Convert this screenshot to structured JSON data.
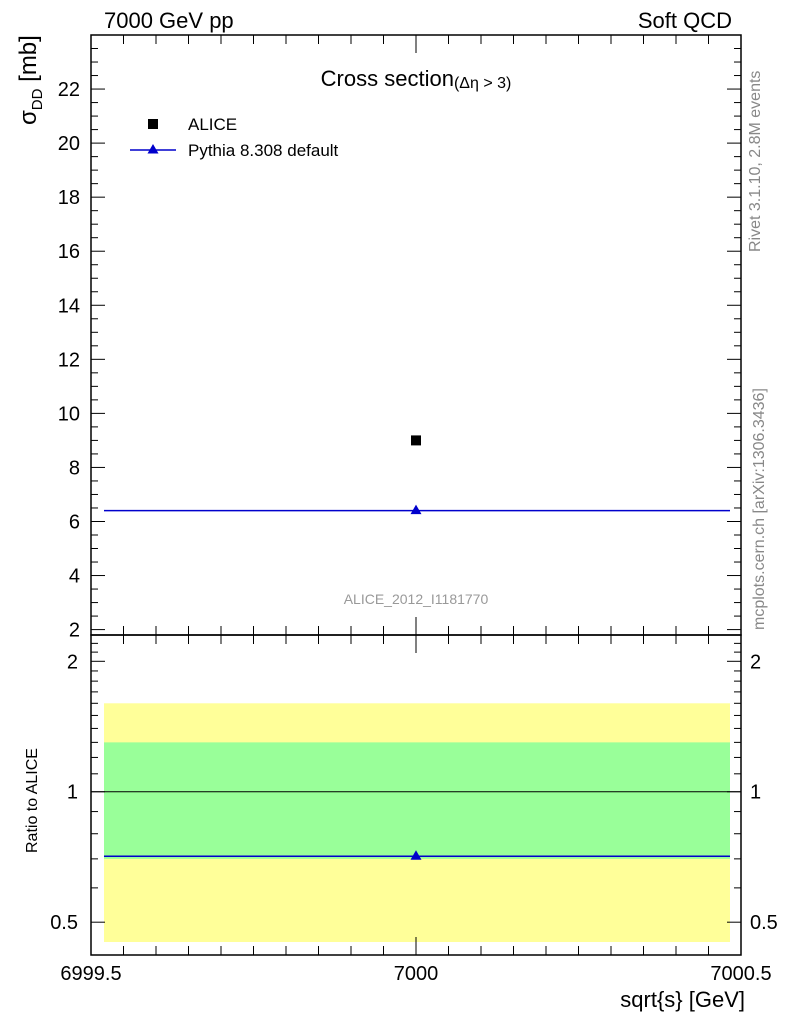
{
  "header": {
    "left": "7000 GeV pp",
    "right": "Soft QCD"
  },
  "side": {
    "rivet": "Rivet 3.1.10,  2.8M events",
    "mcplots": "mcplots.cern.ch [arXiv:1306.3436]"
  },
  "colors": {
    "alice": "#000000",
    "pythia": "#0000cc",
    "band_inner": "#99ff99",
    "band_outer": "#ffff99",
    "watermark": "#999999"
  },
  "chart_data": [
    {
      "type": "scatter",
      "title": "Cross section",
      "title_sub": "(Δη > 3)",
      "ylabel_main": "σ",
      "ylabel_sub": "DD",
      "ylabel_unit": " [mb]",
      "xlabel": "sqrt{s} [GeV]",
      "xlim": [
        6999.5,
        7000.5
      ],
      "ylim": [
        1.8,
        24.0
      ],
      "y_ticks": [
        "2",
        "4",
        "6",
        "8",
        "10",
        "12",
        "14",
        "16",
        "18",
        "20",
        "22"
      ],
      "watermark": "ALICE_2012_I1181770",
      "legend_position": "top-left",
      "series": [
        {
          "name": "ALICE",
          "x": [
            7000
          ],
          "y": [
            9.0
          ],
          "marker": "square"
        },
        {
          "name": "Pythia 8.308 default",
          "x": [
            7000
          ],
          "y": [
            6.4
          ],
          "marker": "triangle",
          "line": true
        }
      ]
    },
    {
      "type": "line",
      "ylabel": "Ratio to ALICE",
      "xlim": [
        6999.5,
        7000.5
      ],
      "ylim": [
        0.42,
        2.3
      ],
      "scale": "log",
      "y_ticks": [
        "0.5",
        "1",
        "2"
      ],
      "x_ticks": [
        "6999.5",
        "7000",
        "7000.5"
      ],
      "reference": 1.0,
      "band_inner": [
        0.7,
        1.3
      ],
      "band_outer": [
        0.45,
        1.6
      ],
      "series": [
        {
          "name": "Pythia 8.308 default",
          "x": [
            7000
          ],
          "y": [
            0.71
          ]
        }
      ]
    }
  ]
}
